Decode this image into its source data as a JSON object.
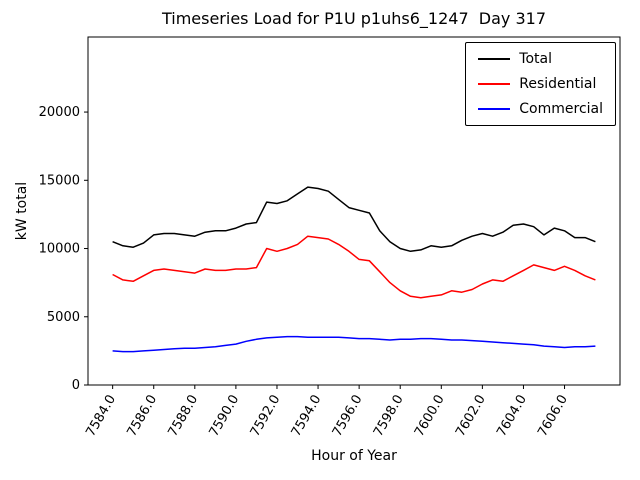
{
  "chart_data": {
    "type": "line",
    "title": "Timeseries Load for P1U p1uhs6_1247  Day 317",
    "xlabel": "Hour of Year",
    "ylabel": "kW total",
    "grid": false,
    "legend_position": "upper right",
    "xlim": [
      7582.8,
      7608.7
    ],
    "ylim": [
      0,
      25500
    ],
    "xticks": [
      7584,
      7586,
      7588,
      7590,
      7592,
      7594,
      7596,
      7598,
      7600,
      7602,
      7604,
      7606
    ],
    "xtick_labels": [
      "7584.0",
      "7586.0",
      "7588.0",
      "7590.0",
      "7592.0",
      "7594.0",
      "7596.0",
      "7598.0",
      "7600.0",
      "7602.0",
      "7604.0",
      "7606.0"
    ],
    "yticks": [
      0,
      5000,
      10000,
      15000,
      20000
    ],
    "ytick_labels": [
      "0",
      "5000",
      "10000",
      "15000",
      "20000"
    ],
    "x": [
      7584.0,
      7584.5,
      7585.0,
      7585.5,
      7586.0,
      7586.5,
      7587.0,
      7587.5,
      7588.0,
      7588.5,
      7589.0,
      7589.5,
      7590.0,
      7590.5,
      7591.0,
      7591.5,
      7592.0,
      7592.5,
      7593.0,
      7593.5,
      7594.0,
      7594.5,
      7595.0,
      7595.5,
      7596.0,
      7596.5,
      7597.0,
      7597.5,
      7598.0,
      7598.5,
      7599.0,
      7599.5,
      7600.0,
      7600.5,
      7601.0,
      7601.5,
      7602.0,
      7602.5,
      7603.0,
      7603.5,
      7604.0,
      7604.5,
      7605.0,
      7605.5,
      7606.0,
      7606.5,
      7607.0,
      7607.5
    ],
    "series": [
      {
        "name": "Total",
        "color": "#000000",
        "values": [
          10500,
          10200,
          10100,
          10400,
          11000,
          11100,
          11100,
          11000,
          10900,
          11200,
          11300,
          11300,
          11500,
          11800,
          11900,
          13400,
          13300,
          13500,
          14000,
          14500,
          14400,
          14200,
          13600,
          13000,
          12800,
          12600,
          11300,
          10500,
          10000,
          9800,
          9900,
          10200,
          10100,
          10200,
          10600,
          10900,
          11100,
          10900,
          11200,
          11700,
          11800,
          11600,
          11000,
          11500,
          11300,
          10800,
          10800,
          10500
        ]
      },
      {
        "name": "Residential",
        "color": "#ff0000",
        "values": [
          8100,
          7700,
          7600,
          8000,
          8400,
          8500,
          8400,
          8300,
          8200,
          8500,
          8400,
          8400,
          8500,
          8500,
          8600,
          10000,
          9800,
          10000,
          10300,
          10900,
          10800,
          10700,
          10300,
          9800,
          9200,
          9100,
          8300,
          7500,
          6900,
          6500,
          6400,
          6500,
          6600,
          6900,
          6800,
          7000,
          7400,
          7700,
          7600,
          8000,
          8400,
          8800,
          8600,
          8400,
          8700,
          8400,
          8000,
          7700
        ]
      },
      {
        "name": "Commercial",
        "color": "#0000ff",
        "values": [
          2500,
          2450,
          2450,
          2500,
          2550,
          2600,
          2650,
          2700,
          2700,
          2750,
          2800,
          2900,
          3000,
          3200,
          3350,
          3450,
          3500,
          3550,
          3550,
          3500,
          3500,
          3500,
          3500,
          3450,
          3400,
          3400,
          3350,
          3300,
          3350,
          3350,
          3400,
          3400,
          3350,
          3300,
          3300,
          3250,
          3200,
          3150,
          3100,
          3050,
          3000,
          2950,
          2850,
          2800,
          2750,
          2800,
          2800,
          2850
        ]
      }
    ]
  }
}
